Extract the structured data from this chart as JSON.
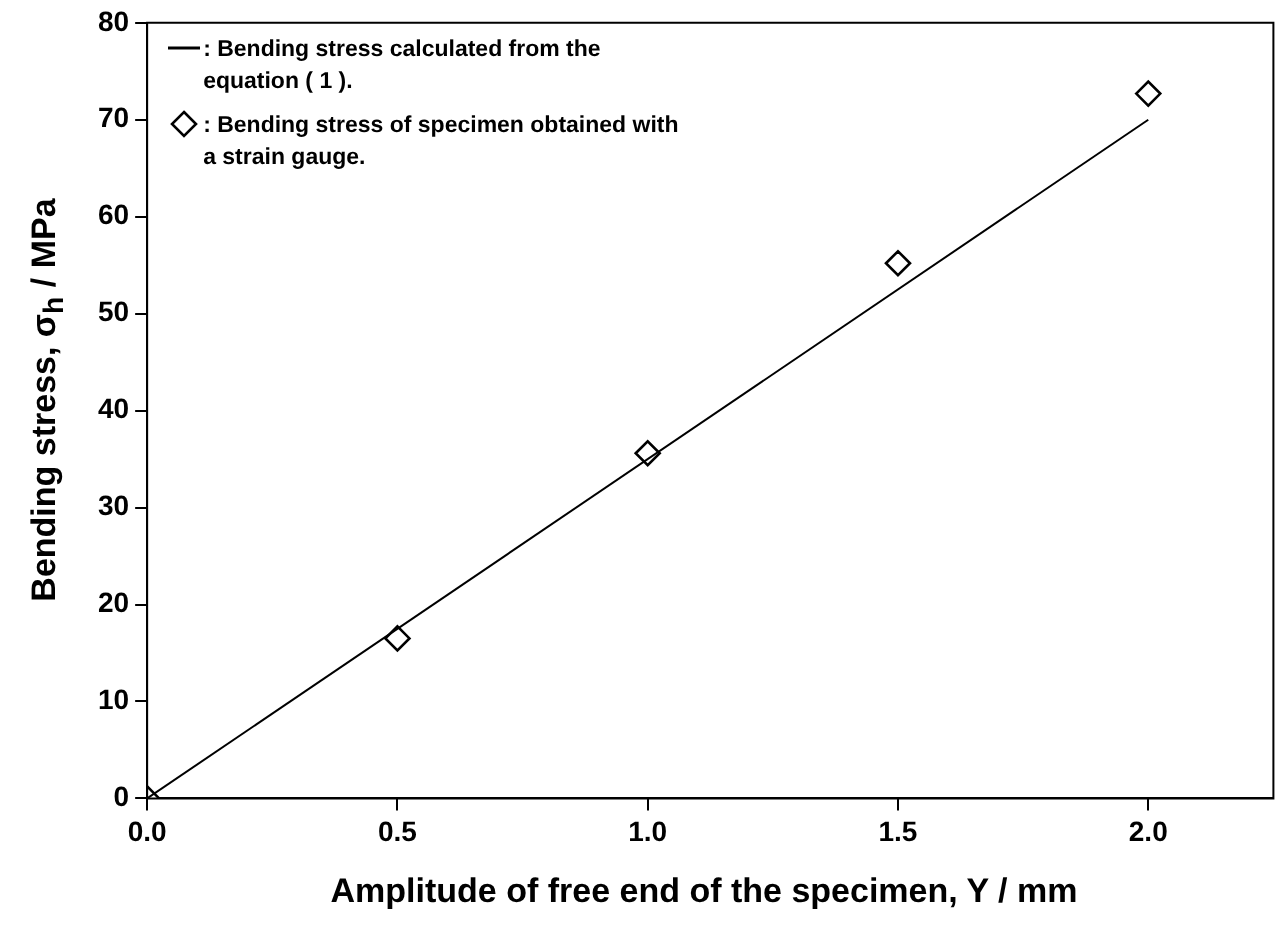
{
  "chart_data": {
    "type": "scatter",
    "xlabel": "Amplitude of free end of the specimen, Y / mm",
    "ylabel": "Bending stress, σ$_{h}$ / MPa",
    "xlim": [
      0,
      2.25
    ],
    "xticks": [
      {
        "value": 0,
        "label": "0.0"
      },
      {
        "value": 0.5,
        "label": "0.5"
      },
      {
        "value": 1,
        "label": "1.0"
      },
      {
        "value": 1.5,
        "label": "1.5"
      },
      {
        "value": 2,
        "label": "2.0"
      }
    ],
    "ylim": [
      0,
      80
    ],
    "yticks": [
      0,
      10,
      20,
      30,
      40,
      50,
      60,
      70,
      80
    ],
    "legend": "top left",
    "series": [
      {
        "name": ": Bending stress calculated from the equation ( 1 ).",
        "type": "line",
        "color": "#000000",
        "x": [
          0,
          2
        ],
        "values": [
          0,
          70
        ],
        "marker": "none"
      },
      {
        "name": ": Bending stress of specimen obtained with a strain gauge.",
        "color": "#000000",
        "x": [
          0,
          0.5,
          1,
          1.5,
          2
        ],
        "values": [
          0,
          16.5,
          35.6,
          55.2,
          72.7
        ],
        "marker": "diamond"
      }
    ]
  }
}
